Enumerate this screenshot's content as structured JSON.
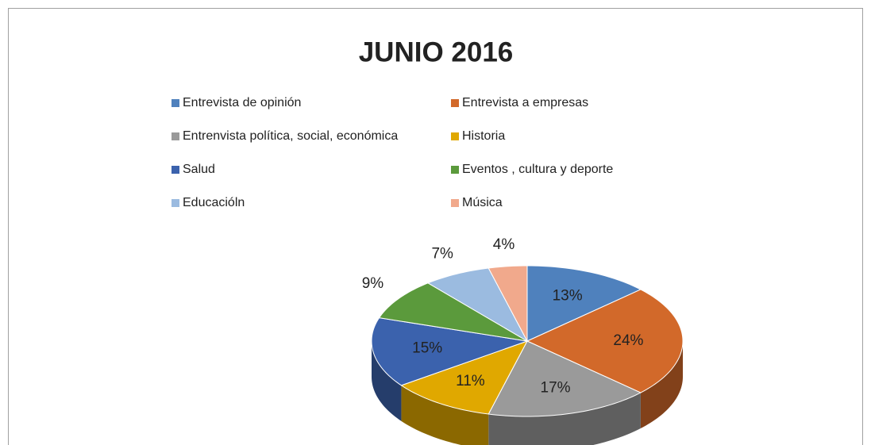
{
  "chart_data": {
    "type": "pie",
    "title": "JUNIO 2016",
    "categories": [
      "Entrevista de opinión",
      "Entrevista a empresas",
      "Entrenvista política, social, económica",
      "Historia",
      "Salud",
      "Eventos , cultura y deporte",
      "Educacióln",
      "Música"
    ],
    "values": [
      13,
      24,
      17,
      11,
      15,
      9,
      7,
      4
    ],
    "value_labels": [
      "13%",
      "24%",
      "17%",
      "11%",
      "15%",
      "9%",
      "7%",
      "4%"
    ],
    "colors": [
      "#4f81bd",
      "#d2692a",
      "#9a9a9a",
      "#e0a800",
      "#3b62ad",
      "#5b9a3c",
      "#9bbbe0",
      "#f1a98c"
    ]
  }
}
